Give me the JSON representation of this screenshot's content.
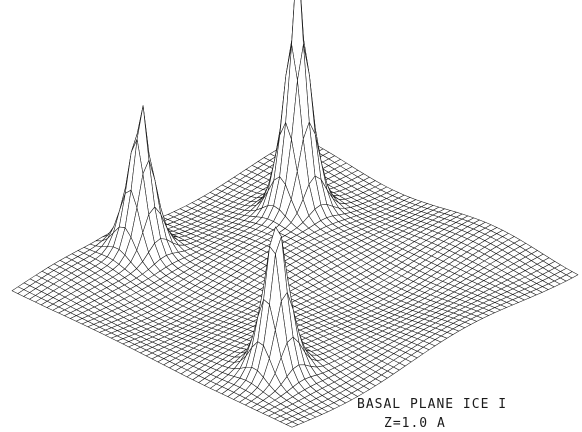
{
  "chart_data": {
    "type": "surface",
    "caption": [
      "BASAL PLANE ICE I",
      "Z=1.0 A"
    ],
    "grid": {
      "nx": 49,
      "ny": 49,
      "x_range": [
        0,
        1
      ],
      "y_range": [
        0,
        1
      ]
    },
    "baseline": 0.02,
    "peaks": [
      {
        "x": 0.25,
        "y": 0.25,
        "height": 1.0
      },
      {
        "x": 0.1,
        "y": 0.65,
        "height": 0.62
      },
      {
        "x": 0.78,
        "y": 0.84,
        "height": 0.67
      }
    ],
    "line_color": "#1a1a1a",
    "background": "#ffffff"
  }
}
